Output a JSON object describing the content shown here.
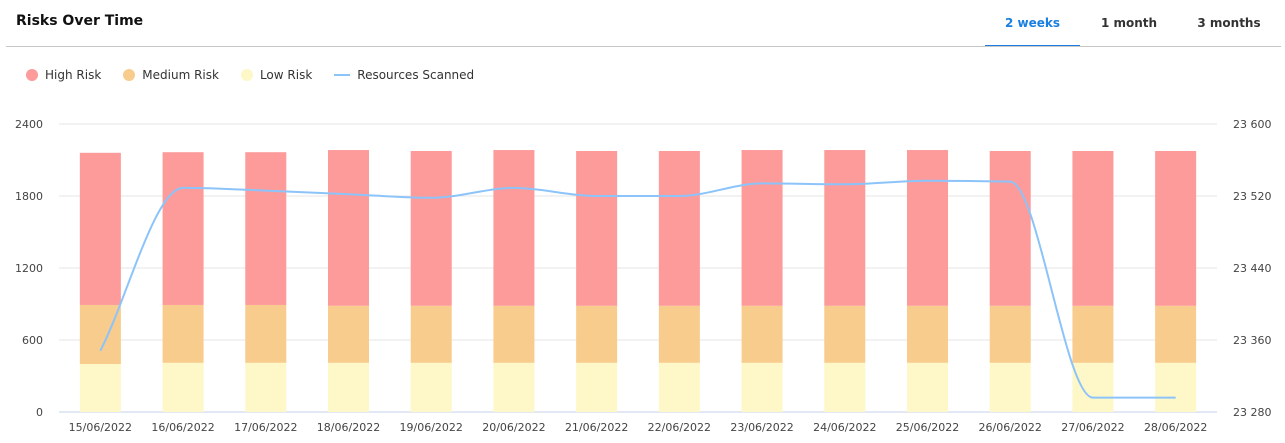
{
  "header": {
    "title": "Risks Over Time",
    "tabs": [
      {
        "label": "2 weeks",
        "active": true
      },
      {
        "label": "1 month",
        "active": false
      },
      {
        "label": "3 months",
        "active": false
      }
    ]
  },
  "colors": {
    "high": "#fd9a9a",
    "medium": "#f8cc8c",
    "low": "#fef7c8",
    "line": "#8cc4fa",
    "accent": "#1a7fe0"
  },
  "chart_data": {
    "type": "bar",
    "stacked": true,
    "categories": [
      "15/06/2022",
      "16/06/2022",
      "17/06/2022",
      "18/06/2022",
      "19/06/2022",
      "20/06/2022",
      "21/06/2022",
      "22/06/2022",
      "23/06/2022",
      "24/06/2022",
      "25/06/2022",
      "26/06/2022",
      "27/06/2022",
      "28/06/2022"
    ],
    "series": [
      {
        "name": "High Risk",
        "type": "bar",
        "values": [
          1268,
          1273,
          1273,
          1298,
          1290,
          1298,
          1290,
          1290,
          1298,
          1298,
          1298,
          1290,
          1290,
          1290
        ]
      },
      {
        "name": "Medium Risk",
        "type": "bar",
        "values": [
          492,
          482,
          482,
          475,
          475,
          475,
          475,
          475,
          475,
          475,
          475,
          475,
          475,
          475
        ]
      },
      {
        "name": "Low Risk",
        "type": "bar",
        "values": [
          400,
          410,
          410,
          410,
          410,
          410,
          410,
          410,
          410,
          410,
          410,
          410,
          410,
          410
        ]
      },
      {
        "name": "Resources Scanned",
        "type": "line",
        "axis": "right",
        "values": [
          23348,
          23529,
          23526,
          23522,
          23518,
          23529,
          23520,
          23520,
          23534,
          23533,
          23537,
          23536,
          23296,
          23296
        ]
      }
    ],
    "yleft": {
      "ylim": [
        0,
        2400
      ],
      "ticks": [
        "0",
        "600",
        "1200",
        "1800",
        "2400"
      ]
    },
    "yright": {
      "ylim": [
        23280,
        23600
      ],
      "ticks": [
        "23 280",
        "23 360",
        "23 440",
        "23 520",
        "23 600"
      ]
    },
    "grid": true,
    "legend": "top-left"
  }
}
